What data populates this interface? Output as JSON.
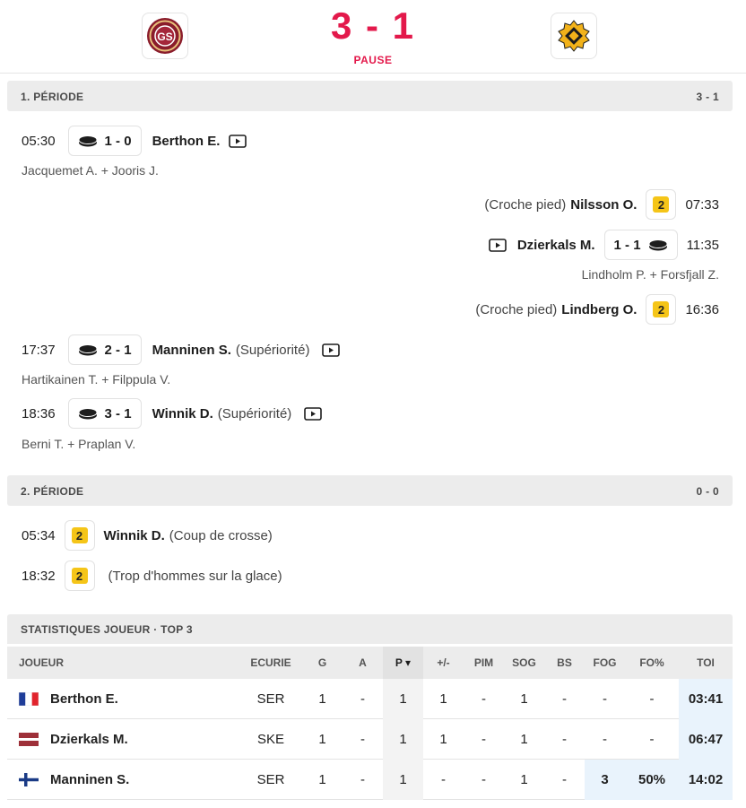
{
  "header": {
    "score": "3 - 1",
    "status": "PAUSE",
    "home_logo_icon": "geneve-servette-logo-icon",
    "away_logo_icon": "skelleftea-logo-icon",
    "accent_color": "#e3194b"
  },
  "periods": [
    {
      "label": "1. PÉRIODE",
      "score": "3 - 1",
      "events": [
        {
          "side": "home",
          "type": "goal",
          "time": "05:30",
          "score": "1 - 0",
          "player": "Berthon E.",
          "extra": "",
          "video": true,
          "assists": "Jacquemet A. + Jooris J."
        },
        {
          "side": "away",
          "type": "penalty",
          "time": "07:33",
          "minutes": "2",
          "player": "Nilsson O.",
          "reason": "(Croche pied)"
        },
        {
          "side": "away",
          "type": "goal",
          "time": "11:35",
          "score": "1 - 1",
          "player": "Dzierkals M.",
          "video": true,
          "assists": "Lindholm P. + Forsfjall Z."
        },
        {
          "side": "away",
          "type": "penalty",
          "time": "16:36",
          "minutes": "2",
          "player": "Lindberg O.",
          "reason": "(Croche pied)"
        },
        {
          "side": "home",
          "type": "goal",
          "time": "17:37",
          "score": "2 - 1",
          "player": "Manninen S.",
          "extra": "(Supériorité)",
          "video": true,
          "assists": "Hartikainen T. + Filppula V."
        },
        {
          "side": "home",
          "type": "goal",
          "time": "18:36",
          "score": "3 - 1",
          "player": "Winnik D.",
          "extra": "(Supériorité)",
          "video": true,
          "assists": "Berni T. + Praplan V."
        }
      ]
    },
    {
      "label": "2. PÉRIODE",
      "score": "0 - 0",
      "events": [
        {
          "side": "home",
          "type": "penalty",
          "time": "05:34",
          "minutes": "2",
          "player": "Winnik D.",
          "reason": "(Coup de crosse)"
        },
        {
          "side": "home",
          "type": "penalty",
          "time": "18:32",
          "minutes": "2",
          "player": "",
          "reason": "(Trop d'hommes sur la glace)"
        }
      ]
    }
  ],
  "stats": {
    "title": "STATISTIQUES JOUEUR · TOP 3",
    "columns": [
      "JOUEUR",
      "ECURIE",
      "G",
      "A",
      "P ▾",
      "+/-",
      "PIM",
      "SOG",
      "BS",
      "FOG",
      "FO%",
      "TOI"
    ],
    "sorted_column": "P",
    "rows": [
      {
        "flag": "france-flag-icon",
        "name": "Berthon E.",
        "team": "SER",
        "g": "1",
        "a": "-",
        "p": "1",
        "pm": "1",
        "pim": "-",
        "sog": "1",
        "bs": "-",
        "fog": "-",
        "fo": "-",
        "toi": "03:41"
      },
      {
        "flag": "latvia-flag-icon",
        "name": "Dzierkals M.",
        "team": "SKE",
        "g": "1",
        "a": "-",
        "p": "1",
        "pm": "1",
        "pim": "-",
        "sog": "1",
        "bs": "-",
        "fog": "-",
        "fo": "-",
        "toi": "06:47"
      },
      {
        "flag": "finland-flag-icon",
        "name": "Manninen S.",
        "team": "SER",
        "g": "1",
        "a": "-",
        "p": "1",
        "pm": "-",
        "pim": "-",
        "sog": "1",
        "bs": "-",
        "fog": "3",
        "fo": "50%",
        "toi": "14:02"
      }
    ],
    "highlight_color": "#e9f3fc",
    "penalty_color": "#f5c518"
  }
}
